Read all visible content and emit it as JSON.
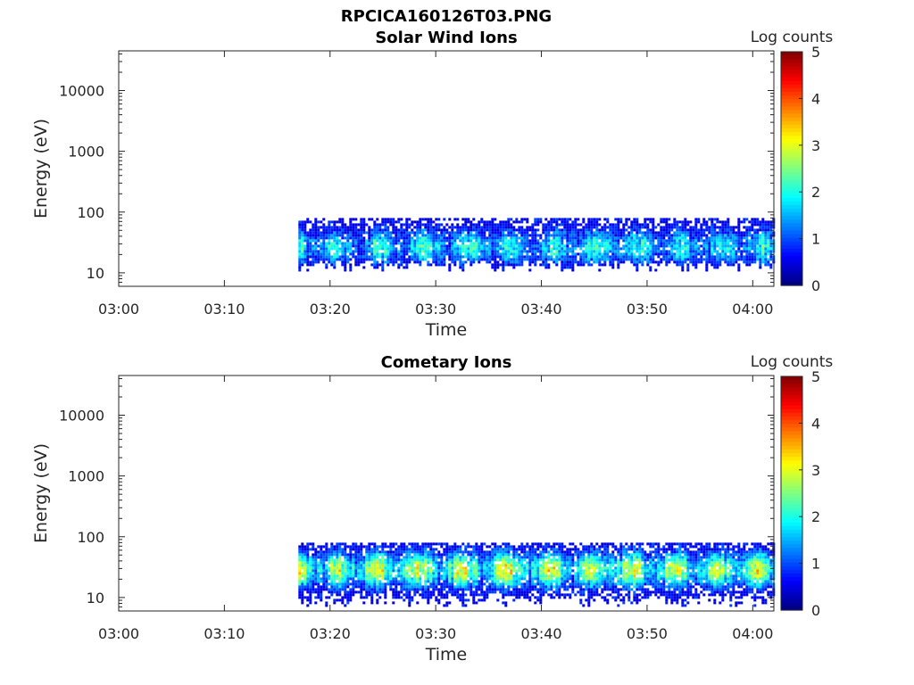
{
  "figure_title": "RPCICA160126T03.PNG",
  "colors": {
    "axis": "#262626",
    "background": "#ffffff",
    "colormap": "jet"
  },
  "chart_data": [
    {
      "type": "heatmap",
      "title": "Solar Wind Ions",
      "xlabel": "Time",
      "ylabel": "Energy (eV)",
      "x_ticks": [
        "03:00",
        "03:10",
        "03:20",
        "03:30",
        "03:40",
        "03:50",
        "04:00"
      ],
      "xlim": [
        "03:00",
        "04:02"
      ],
      "y_ticks": [
        "10",
        "100",
        "1000",
        "10000"
      ],
      "y_scale": "log",
      "ylim": [
        6,
        45000
      ],
      "colorbar": {
        "label": "Log counts",
        "ticks": [
          "0",
          "1",
          "2",
          "3",
          "4",
          "5"
        ],
        "range": [
          0,
          5
        ]
      },
      "data_time_range": [
        "03:17",
        "04:02"
      ],
      "energy_range_eV": [
        15,
        80
      ],
      "peak_energy_eV": 28,
      "typical_log_counts": 2.0,
      "max_log_counts": 3.0,
      "grid": false
    },
    {
      "type": "heatmap",
      "title": "Cometary Ions",
      "xlabel": "Time",
      "ylabel": "Energy (eV)",
      "x_ticks": [
        "03:00",
        "03:10",
        "03:20",
        "03:30",
        "03:40",
        "03:50",
        "04:00"
      ],
      "xlim": [
        "03:00",
        "04:02"
      ],
      "y_ticks": [
        "10",
        "100",
        "1000",
        "10000"
      ],
      "y_scale": "log",
      "ylim": [
        6,
        45000
      ],
      "colorbar": {
        "label": "Log counts",
        "ticks": [
          "0",
          "1",
          "2",
          "3",
          "4",
          "5"
        ],
        "range": [
          0,
          5
        ]
      },
      "data_time_range": [
        "03:17",
        "04:02"
      ],
      "energy_range_eV": [
        10,
        80
      ],
      "peak_energy_eV": 30,
      "typical_log_counts": 3.0,
      "max_log_counts": 4.0,
      "grid": false
    }
  ]
}
